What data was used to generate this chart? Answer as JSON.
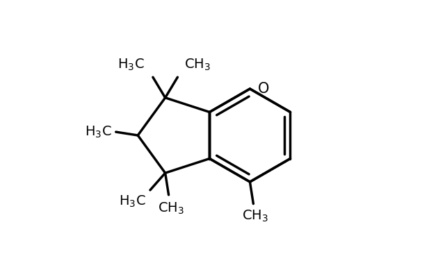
{
  "bg_color": "#ffffff",
  "line_color": "#000000",
  "line_width": 2.5,
  "font_size": 14,
  "figsize": [
    6.4,
    3.89
  ],
  "dpi": 100
}
